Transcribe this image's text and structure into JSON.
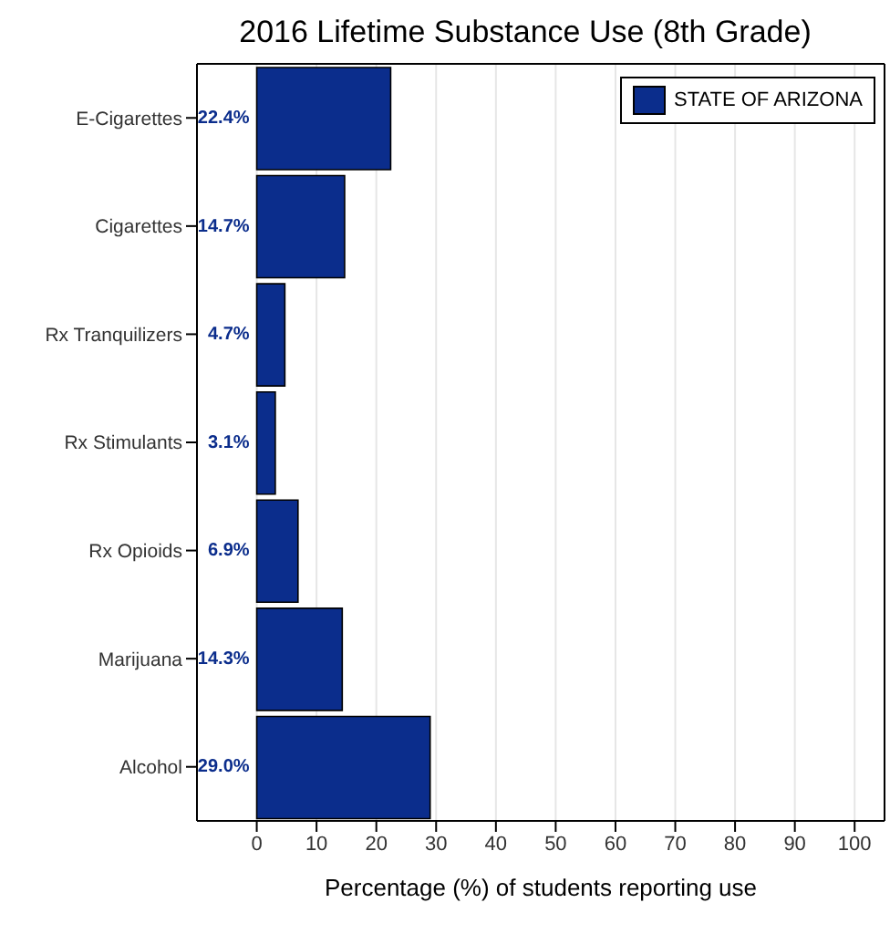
{
  "chart_data": {
    "type": "bar",
    "orientation": "horizontal",
    "title": "2016 Lifetime Substance Use (8th Grade)",
    "xlabel": "Percentage (%) of students reporting use",
    "categories": [
      "E-Cigarettes",
      "Cigarettes",
      "Rx Tranquilizers",
      "Rx Stimulants",
      "Rx Opioids",
      "Marijuana",
      "Alcohol"
    ],
    "series": [
      {
        "name": "STATE OF ARIZONA",
        "color": "#0b2d8c",
        "values": [
          22.4,
          14.7,
          4.7,
          3.1,
          6.9,
          14.3,
          29.0
        ],
        "value_labels": [
          "22.4%",
          "14.7%",
          "4.7%",
          "3.1%",
          "6.9%",
          "14.3%",
          "29.0%"
        ]
      }
    ],
    "xlim": [
      -10,
      105
    ],
    "xticks": [
      0,
      10,
      20,
      30,
      40,
      50,
      60,
      70,
      80,
      90,
      100
    ],
    "grid": "x",
    "legend": "top right"
  }
}
